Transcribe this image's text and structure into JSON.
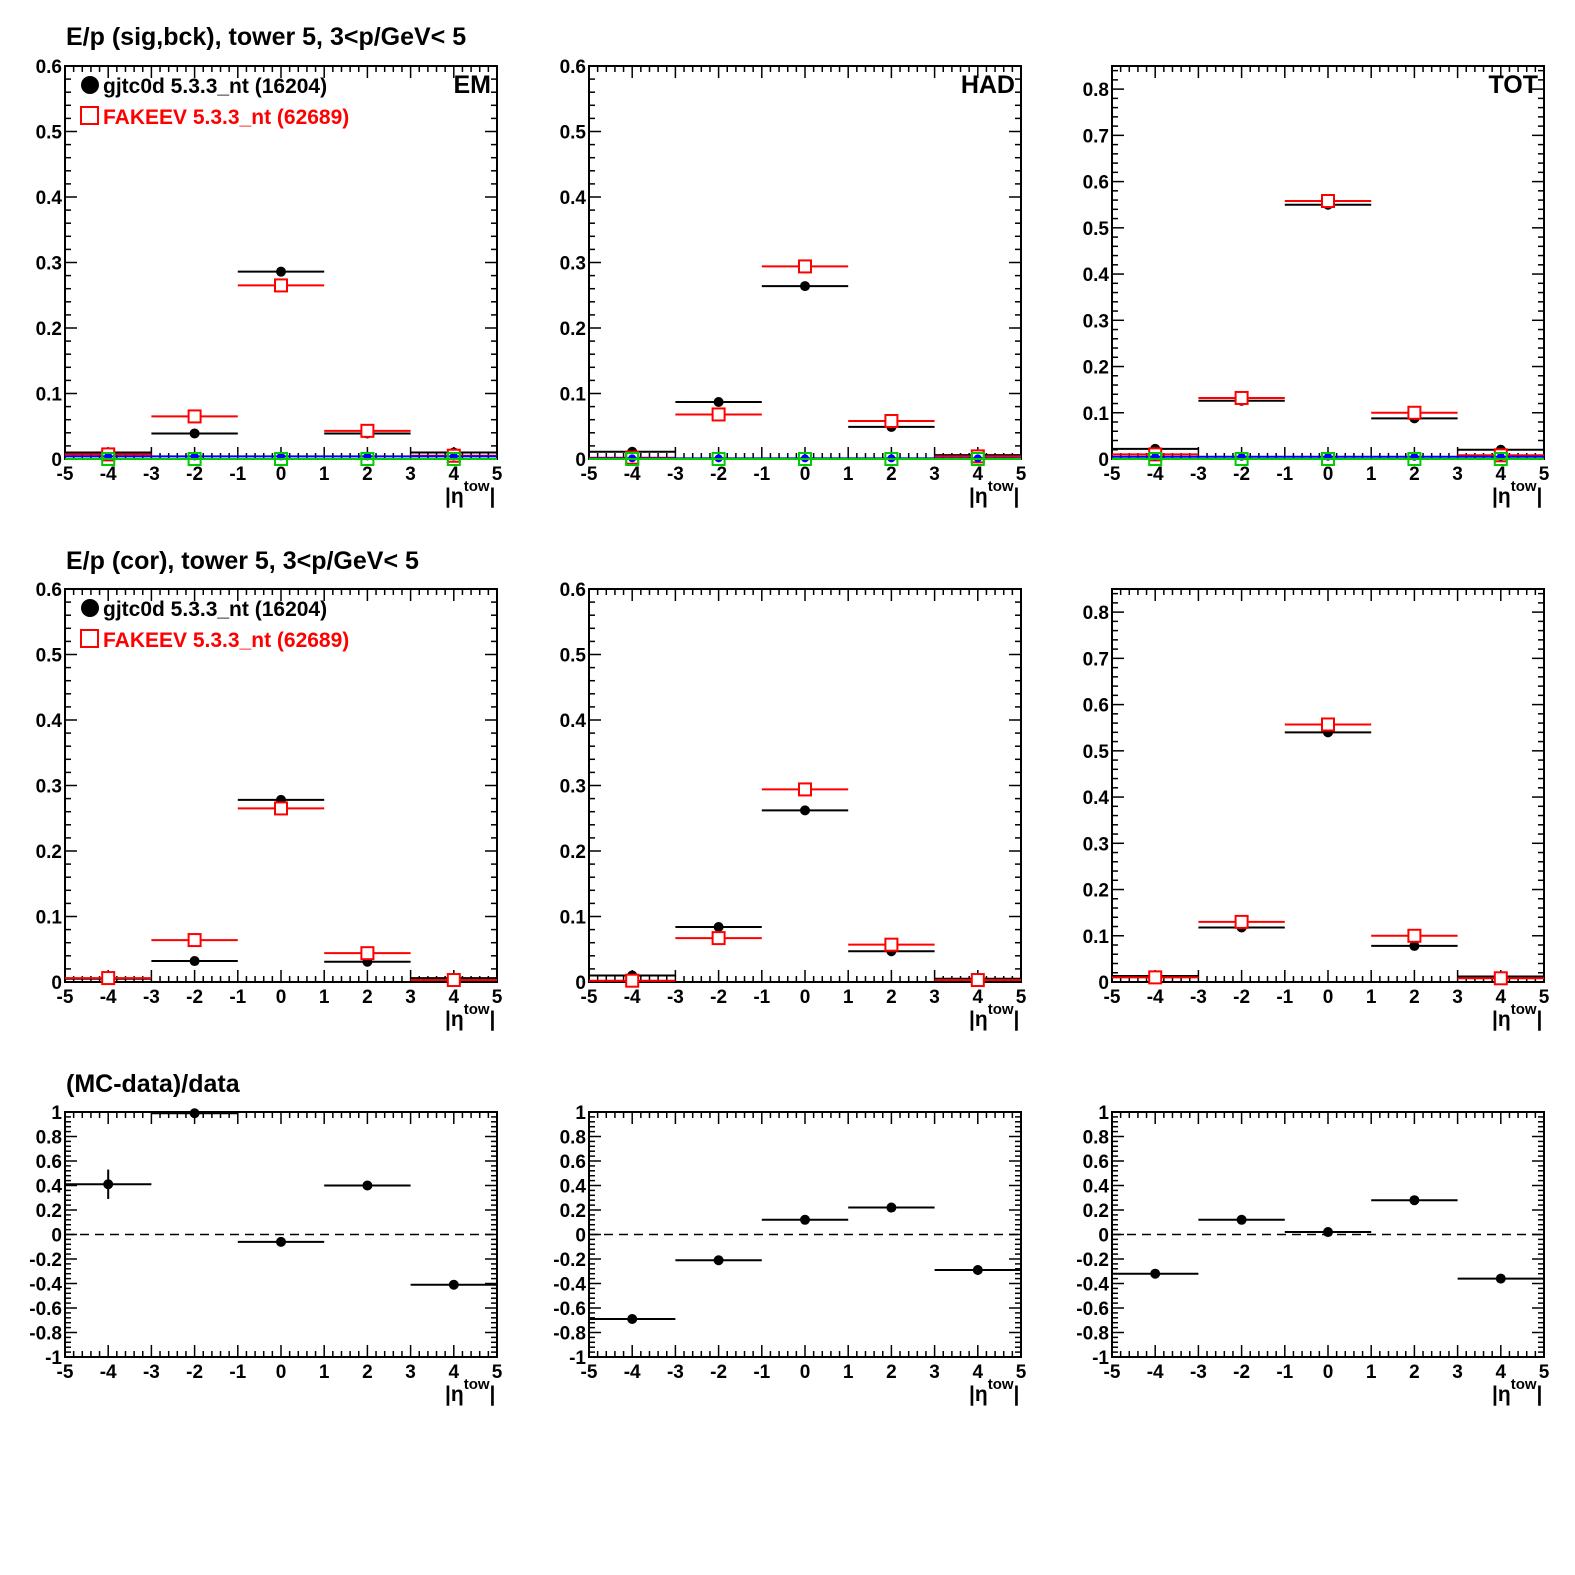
{
  "rows": [
    {
      "title": "E/p (sig,bck), tower 5,  3<p/GeV< 5"
    },
    {
      "title": "E/p (cor), tower 5,  3<p/GeV< 5"
    },
    {
      "title": "(MC-data)/data"
    }
  ],
  "legend": [
    {
      "label": "gjtc0d 5.3.3_nt (16204)",
      "color": "#000000",
      "marker": "filled-circle"
    },
    {
      "label": "FAKEEV 5.3.3_nt (62689)",
      "color": "#ff0000",
      "marker": "open-square"
    }
  ],
  "x_axis": {
    "label_main": "|η",
    "label_sup": "tow",
    "label_close": "|",
    "ticks": [
      "-5",
      "-4",
      "-3",
      "-2",
      "-1",
      "0",
      "1",
      "2",
      "3",
      "4",
      "5"
    ],
    "range": [
      -5,
      5
    ]
  },
  "colors": {
    "data": "#000000",
    "mc": "#ff0000",
    "background": "#0000ff",
    "background_mc": "#00cc00",
    "reference": "#000000"
  },
  "chart_data": [
    {
      "type": "scatter",
      "row": 0,
      "col": 0,
      "corner_label": "EM",
      "show_legend": true,
      "ylim": [
        0,
        0.6
      ],
      "yticks": [
        "0",
        "0.1",
        "0.2",
        "0.3",
        "0.4",
        "0.5",
        "0.6"
      ],
      "xlabel": "|ηtow|",
      "series": [
        {
          "name": "gjtc0d 5.3.3_nt (16204)",
          "x": [
            -4,
            -2,
            0,
            2,
            4
          ],
          "y": [
            0.01,
            0.039,
            0.286,
            0.039,
            0.01
          ]
        },
        {
          "name": "FAKEEV 5.3.3_nt (62689)",
          "x": [
            -4,
            -2,
            0,
            2,
            4
          ],
          "y": [
            0.007,
            0.065,
            0.265,
            0.043,
            0.005
          ]
        },
        {
          "x": [
            -4,
            -2,
            0,
            2,
            4
          ],
          "y": [
            0.004,
            0.004,
            0.004,
            0.004,
            0.004
          ]
        },
        {
          "x": [
            -4,
            -2,
            0,
            2,
            4
          ],
          "y": [
            0.0,
            0.0,
            0.0,
            0.0,
            0.0
          ]
        }
      ]
    },
    {
      "type": "scatter",
      "row": 0,
      "col": 1,
      "corner_label": "HAD",
      "show_legend": false,
      "ylim": [
        0,
        0.6
      ],
      "yticks": [
        "0",
        "0.1",
        "0.2",
        "0.3",
        "0.4",
        "0.5",
        "0.6"
      ],
      "xlabel": "|ηtow|",
      "series": [
        {
          "name": "gjtc0d 5.3.3_nt (16204)",
          "x": [
            -4,
            -2,
            0,
            2,
            4
          ],
          "y": [
            0.011,
            0.087,
            0.264,
            0.049,
            0.006
          ]
        },
        {
          "name": "FAKEEV 5.3.3_nt (62689)",
          "x": [
            -4,
            -2,
            0,
            2,
            4
          ],
          "y": [
            0.002,
            0.068,
            0.294,
            0.058,
            0.004
          ]
        },
        {
          "x": [
            -4,
            -2,
            0,
            2,
            4
          ],
          "y": [
            0.001,
            0.001,
            0.001,
            0.001,
            0.001
          ]
        },
        {
          "x": [
            -4,
            -2,
            0,
            2,
            4
          ],
          "y": [
            0.0,
            0.0,
            0.0,
            0.0,
            0.0
          ]
        }
      ]
    },
    {
      "type": "scatter",
      "row": 0,
      "col": 2,
      "corner_label": "TOT",
      "show_legend": false,
      "ylim": [
        0,
        0.85
      ],
      "yticks": [
        "0",
        "0.1",
        "0.2",
        "0.3",
        "0.4",
        "0.5",
        "0.6",
        "0.7",
        "0.8"
      ],
      "xlabel": "|ηtow|",
      "series": [
        {
          "name": "gjtc0d 5.3.3_nt (16204)",
          "x": [
            -4,
            -2,
            0,
            2,
            4
          ],
          "y": [
            0.022,
            0.126,
            0.55,
            0.088,
            0.02
          ]
        },
        {
          "name": "FAKEEV 5.3.3_nt (62689)",
          "x": [
            -4,
            -2,
            0,
            2,
            4
          ],
          "y": [
            0.01,
            0.132,
            0.558,
            0.1,
            0.008
          ]
        },
        {
          "x": [
            -4,
            -2,
            0,
            2,
            4
          ],
          "y": [
            0.005,
            0.005,
            0.005,
            0.005,
            0.005
          ]
        },
        {
          "x": [
            -4,
            -2,
            0,
            2,
            4
          ],
          "y": [
            0.0,
            0.0,
            0.0,
            0.0,
            0.0
          ]
        }
      ]
    },
    {
      "type": "scatter",
      "row": 1,
      "col": 0,
      "corner_label": "",
      "show_legend": true,
      "ylim": [
        0,
        0.6
      ],
      "yticks": [
        "0",
        "0.1",
        "0.2",
        "0.3",
        "0.4",
        "0.5",
        "0.6"
      ],
      "xlabel": "|ηtow|",
      "series": [
        {
          "name": "gjtc0d 5.3.3_nt (16204)",
          "x": [
            -4,
            -2,
            0,
            2,
            4
          ],
          "y": [
            0.005,
            0.032,
            0.278,
            0.031,
            0.006
          ]
        },
        {
          "name": "FAKEEV 5.3.3_nt (62689)",
          "x": [
            -4,
            -2,
            0,
            2,
            4
          ],
          "y": [
            0.006,
            0.064,
            0.265,
            0.044,
            0.003
          ]
        }
      ]
    },
    {
      "type": "scatter",
      "row": 1,
      "col": 1,
      "corner_label": "",
      "show_legend": false,
      "ylim": [
        0,
        0.6
      ],
      "yticks": [
        "0",
        "0.1",
        "0.2",
        "0.3",
        "0.4",
        "0.5",
        "0.6"
      ],
      "xlabel": "|ηtow|",
      "series": [
        {
          "name": "gjtc0d 5.3.3_nt (16204)",
          "x": [
            -4,
            -2,
            0,
            2,
            4
          ],
          "y": [
            0.01,
            0.084,
            0.262,
            0.047,
            0.005
          ]
        },
        {
          "name": "FAKEEV 5.3.3_nt (62689)",
          "x": [
            -4,
            -2,
            0,
            2,
            4
          ],
          "y": [
            0.002,
            0.067,
            0.294,
            0.057,
            0.003
          ]
        }
      ]
    },
    {
      "type": "scatter",
      "row": 1,
      "col": 2,
      "corner_label": "",
      "show_legend": false,
      "ylim": [
        0,
        0.85
      ],
      "yticks": [
        "0",
        "0.1",
        "0.2",
        "0.3",
        "0.4",
        "0.5",
        "0.6",
        "0.7",
        "0.8"
      ],
      "xlabel": "|ηtow|",
      "series": [
        {
          "name": "gjtc0d 5.3.3_nt (16204)",
          "x": [
            -4,
            -2,
            0,
            2,
            4
          ],
          "y": [
            0.013,
            0.118,
            0.54,
            0.078,
            0.012
          ]
        },
        {
          "name": "FAKEEV 5.3.3_nt (62689)",
          "x": [
            -4,
            -2,
            0,
            2,
            4
          ],
          "y": [
            0.01,
            0.13,
            0.557,
            0.1,
            0.008
          ]
        }
      ]
    },
    {
      "type": "scatter",
      "row": 2,
      "col": 0,
      "corner_label": "",
      "show_legend": false,
      "ylim": [
        -1,
        1
      ],
      "yticks": [
        "-1",
        "-0.8",
        "-0.6",
        "-0.4",
        "-0.2",
        "0",
        "0.2",
        "0.4",
        "0.6",
        "0.8",
        "1"
      ],
      "xlabel": "|ηtow|",
      "reference_line": 0,
      "series": [
        {
          "x": [
            -4,
            -2,
            0,
            2,
            4
          ],
          "y": [
            0.41,
            0.99,
            -0.06,
            0.4,
            -0.41
          ],
          "yerr": [
            0.12,
            0.01,
            0.01,
            0.01,
            0.01
          ]
        }
      ]
    },
    {
      "type": "scatter",
      "row": 2,
      "col": 1,
      "corner_label": "",
      "show_legend": false,
      "ylim": [
        -1,
        1
      ],
      "yticks": [
        "-1",
        "-0.8",
        "-0.6",
        "-0.4",
        "-0.2",
        "0",
        "0.2",
        "0.4",
        "0.6",
        "0.8",
        "1"
      ],
      "xlabel": "|ηtow|",
      "reference_line": 0,
      "series": [
        {
          "x": [
            -4,
            -2,
            0,
            2,
            4
          ],
          "y": [
            -0.69,
            -0.21,
            0.12,
            0.22,
            -0.29
          ],
          "yerr": [
            0.01,
            0.01,
            0.01,
            0.01,
            0.04
          ]
        }
      ]
    },
    {
      "type": "scatter",
      "row": 2,
      "col": 2,
      "corner_label": "",
      "show_legend": false,
      "ylim": [
        -1,
        1
      ],
      "yticks": [
        "-1",
        "-0.8",
        "-0.6",
        "-0.4",
        "-0.2",
        "0",
        "0.2",
        "0.4",
        "0.6",
        "0.8",
        "1"
      ],
      "xlabel": "|ηtow|",
      "reference_line": 0,
      "series": [
        {
          "x": [
            -4,
            -2,
            0,
            2,
            4
          ],
          "y": [
            -0.32,
            0.12,
            0.02,
            0.28,
            -0.36
          ],
          "yerr": [
            0.01,
            0.01,
            0.01,
            0.01,
            0.01
          ]
        }
      ]
    }
  ]
}
